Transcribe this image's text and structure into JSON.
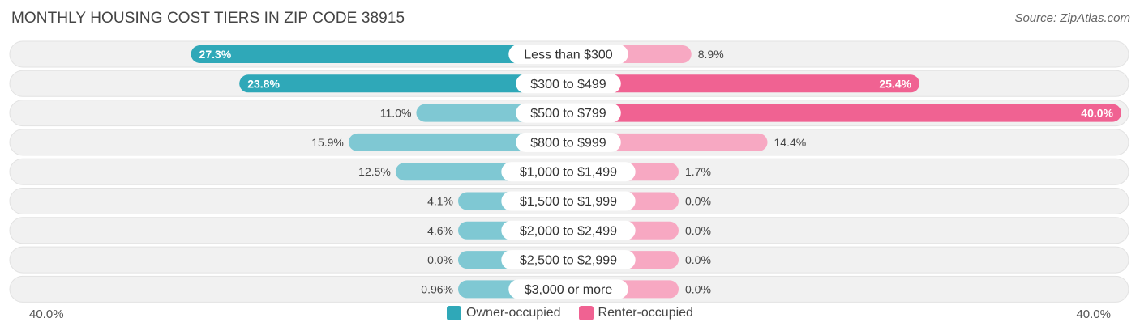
{
  "title": "MONTHLY HOUSING COST TIERS IN ZIP CODE 38915",
  "source": "Source: ZipAtlas.com",
  "axis": {
    "left_label": "40.0%",
    "right_label": "40.0%"
  },
  "legend": {
    "owner": "Owner-occupied",
    "renter": "Renter-occupied"
  },
  "colors": {
    "owner_strong": "#2fa8b8",
    "owner_light": "#7fc8d3",
    "renter_strong": "#f06292",
    "renter_light": "#f7a8c2",
    "row_bg": "#f1f1f1",
    "row_border": "#e2e2e2"
  },
  "chart_data": {
    "type": "bar",
    "orientation": "diverging-horizontal",
    "title": "MONTHLY HOUSING COST TIERS IN ZIP CODE 38915",
    "categories": [
      "Less than $300",
      "$300 to $499",
      "$500 to $799",
      "$800 to $999",
      "$1,000 to $1,499",
      "$1,500 to $1,999",
      "$2,000 to $2,499",
      "$2,500 to $2,999",
      "$3,000 or more"
    ],
    "series": [
      {
        "name": "Owner-occupied",
        "values": [
          27.3,
          23.8,
          11.0,
          15.9,
          12.5,
          4.1,
          4.6,
          0.0,
          0.96
        ],
        "labels": [
          "27.3%",
          "23.8%",
          "11.0%",
          "15.9%",
          "12.5%",
          "4.1%",
          "4.6%",
          "0.0%",
          "0.96%"
        ]
      },
      {
        "name": "Renter-occupied",
        "values": [
          8.9,
          25.4,
          40.0,
          14.4,
          1.7,
          0.0,
          0.0,
          0.0,
          0.0
        ],
        "labels": [
          "8.9%",
          "25.4%",
          "40.0%",
          "14.4%",
          "1.7%",
          "0.0%",
          "0.0%",
          "0.0%",
          "0.0%"
        ]
      }
    ],
    "xlim": [
      -40,
      40
    ],
    "legend_position": "bottom-center"
  }
}
